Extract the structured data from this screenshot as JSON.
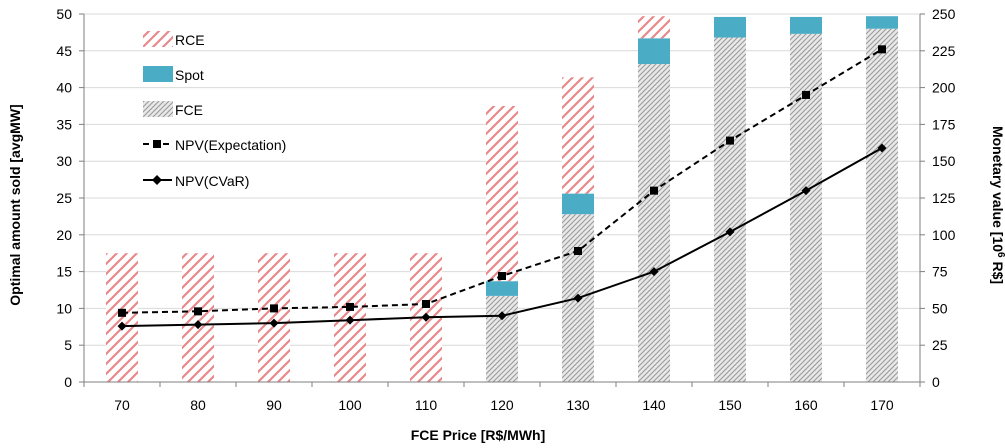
{
  "chart_data": {
    "type": "bar",
    "categories": [
      "70",
      "80",
      "90",
      "100",
      "110",
      "120",
      "130",
      "140",
      "150",
      "160",
      "170"
    ],
    "stack_series": [
      {
        "name": "FCE",
        "values": [
          0,
          0,
          0,
          0,
          0,
          11.7,
          22.8,
          43.2,
          46.8,
          47.3,
          48.0
        ]
      },
      {
        "name": "Spot",
        "values": [
          0,
          0,
          0,
          0,
          0,
          2.0,
          2.8,
          3.5,
          2.8,
          2.3,
          1.7
        ]
      },
      {
        "name": "RCE",
        "values": [
          17.5,
          17.5,
          17.5,
          17.5,
          17.5,
          23.8,
          15.8,
          3.0,
          0,
          0,
          0
        ]
      }
    ],
    "line_series": [
      {
        "name": "NPV(Expectation)",
        "values": [
          47,
          48,
          50,
          51,
          53,
          72,
          89,
          130,
          164,
          195,
          226
        ]
      },
      {
        "name": "NPV(CVaR)",
        "values": [
          38,
          39,
          40,
          42,
          44,
          45,
          57,
          75,
          102,
          130,
          159
        ]
      }
    ],
    "xlabel": "FCE Price [R$/MWh]",
    "ylabel": "Optimal amount sold [avgMW]",
    "y2label_parts": [
      "Monetary value [10",
      "6",
      " R$]"
    ],
    "ylim": [
      0,
      50
    ],
    "y2lim": [
      0,
      250
    ],
    "yticks": [
      "0",
      "5",
      "10",
      "15",
      "20",
      "25",
      "30",
      "35",
      "40",
      "45",
      "50"
    ],
    "y2ticks": [
      "0",
      "25",
      "50",
      "75",
      "100",
      "125",
      "150",
      "175",
      "200",
      "225",
      "250"
    ],
    "legend_position": "top-left",
    "legend": [
      "RCE",
      "Spot",
      "FCE",
      "NPV(Expectation)",
      "NPV(CVaR)"
    ],
    "grid": "horizontal",
    "colors": {
      "RCE": "#e8888a",
      "Spot": "#4bacc6",
      "FCE": "#a0a0a0",
      "line": "#000000",
      "grid": "#d9d9d9"
    }
  }
}
